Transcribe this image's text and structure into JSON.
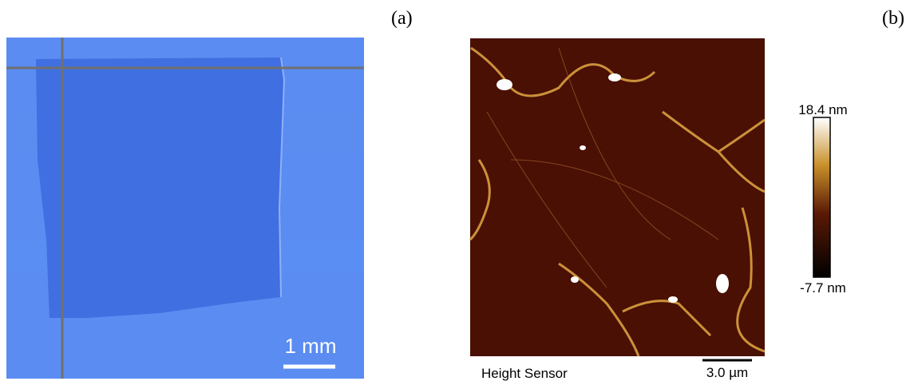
{
  "panels": [
    {
      "label": "(a)",
      "scale_bar": "1 mm"
    },
    {
      "label": "(b)",
      "caption": "Height Sensor",
      "scale_bar": "3.0 µm",
      "colorbar": {
        "max": "18.4 nm",
        "min": "-7.7 nm"
      }
    }
  ]
}
